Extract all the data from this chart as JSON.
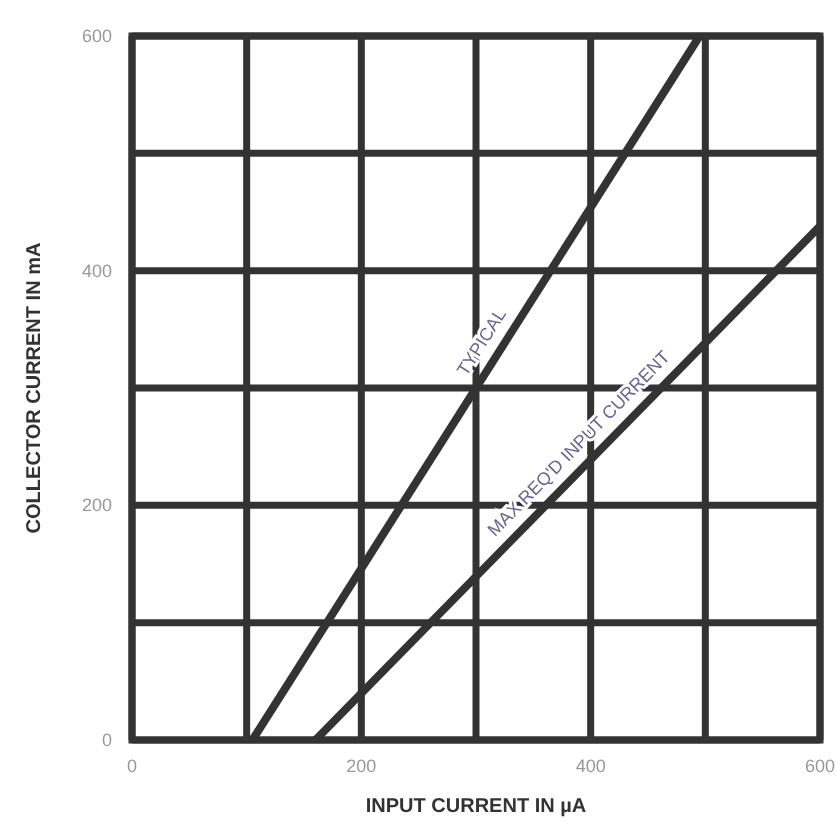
{
  "chart_data": {
    "type": "line",
    "xlabel": "INPUT CURRENT IN µA",
    "ylabel": "COLLECTOR CURRENT IN mA",
    "series": [
      {
        "name": "TYPICAL",
        "color": "#333333",
        "x": [
          105,
          495
        ],
        "values": [
          0,
          600
        ]
      },
      {
        "name": "MAX REQ'D INPUT CURRENT",
        "color": "#333333",
        "x": [
          160,
          600
        ],
        "values": [
          0,
          438
        ]
      }
    ],
    "xlim": [
      0,
      600
    ],
    "ylim": [
      0,
      600
    ],
    "xticks": [
      0,
      {
        "value": 100,
        "label": null
      },
      200,
      {
        "value": 300,
        "label": null
      },
      400,
      {
        "value": 500,
        "label": null
      },
      600
    ],
    "yticks": [
      0,
      {
        "value": 100,
        "label": null
      },
      200,
      {
        "value": 300,
        "label": null
      },
      400,
      {
        "value": 500,
        "label": null
      },
      600
    ],
    "grid": true,
    "marker": "none",
    "line_style": "solid"
  }
}
